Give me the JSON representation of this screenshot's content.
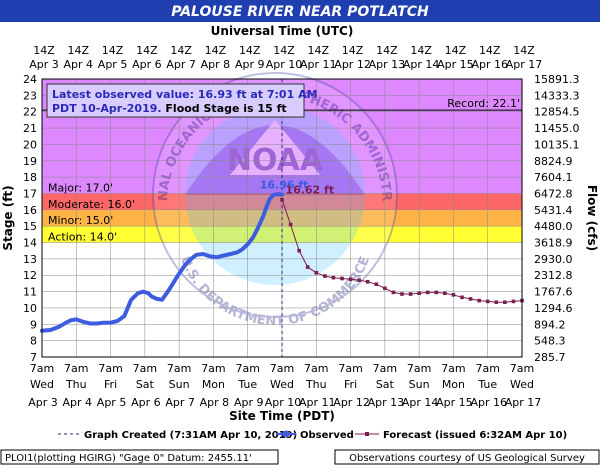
{
  "chart_data": {
    "type": "line",
    "title": "PALOUSE RIVER NEAR POTLATCH",
    "top_axis_label": "Universal Time (UTC)",
    "top_tick_labels": [
      [
        "14Z",
        "Apr 3"
      ],
      [
        "14Z",
        "Apr 4"
      ],
      [
        "14Z",
        "Apr 5"
      ],
      [
        "14Z",
        "Apr 6"
      ],
      [
        "14Z",
        "Apr 7"
      ],
      [
        "14Z",
        "Apr 8"
      ],
      [
        "14Z",
        "Apr 9"
      ],
      [
        "14Z",
        "Apr 10"
      ],
      [
        "14Z",
        "Apr 11"
      ],
      [
        "14Z",
        "Apr 12"
      ],
      [
        "14Z",
        "Apr 13"
      ],
      [
        "14Z",
        "Apr 14"
      ],
      [
        "14Z",
        "Apr 15"
      ],
      [
        "14Z",
        "Apr 16"
      ],
      [
        "14Z",
        "Apr 17"
      ]
    ],
    "xlabel": "Site Time (PDT)",
    "bottom_tick_labels": [
      [
        "7am",
        "Wed",
        "Apr 3"
      ],
      [
        "7am",
        "Thu",
        "Apr 4"
      ],
      [
        "7am",
        "Fri",
        "Apr 5"
      ],
      [
        "7am",
        "Sat",
        "Apr 6"
      ],
      [
        "7am",
        "Sun",
        "Apr 7"
      ],
      [
        "7am",
        "Mon",
        "Apr 8"
      ],
      [
        "7am",
        "Tue",
        "Apr 9"
      ],
      [
        "7am",
        "Wed",
        "Apr 10"
      ],
      [
        "7am",
        "Thu",
        "Apr 11"
      ],
      [
        "7am",
        "Fri",
        "Apr 12"
      ],
      [
        "7am",
        "Sat",
        "Apr 13"
      ],
      [
        "7am",
        "Sun",
        "Apr 14"
      ],
      [
        "7am",
        "Mon",
        "Apr 15"
      ],
      [
        "7am",
        "Tue",
        "Apr 16"
      ],
      [
        "7am",
        "Wed",
        "Apr 17"
      ]
    ],
    "ylabel": "Stage (ft)",
    "y2label": "Flow (cfs)",
    "xlim": [
      0,
      14
    ],
    "ylim": [
      7,
      24
    ],
    "y_ticks": [
      7,
      8,
      9,
      10,
      11,
      12,
      13,
      14,
      15,
      16,
      17,
      18,
      19,
      20,
      21,
      22,
      23,
      24
    ],
    "flow_ticks": [
      "285.7",
      "548.3",
      "894.2",
      "1294.6",
      "1767.6",
      "2312.8",
      "2930.0",
      "3618.9",
      "4480.0",
      "5431.4",
      "6472.8",
      "7604.1",
      "8824.9",
      "10135.1",
      "11455.0",
      "12854.5",
      "14333.3",
      "15891.3"
    ],
    "flood_categories": [
      {
        "name": "Action",
        "label": "Action: 14.0'",
        "from": 14.0,
        "to": 15.0,
        "color": "#ffff33"
      },
      {
        "name": "Minor",
        "label": "Minor: 15.0'",
        "from": 15.0,
        "to": 16.0,
        "color": "#ffb347"
      },
      {
        "name": "Moderate",
        "label": "Moderate: 16.0'",
        "from": 16.0,
        "to": 17.0,
        "color": "#ff6666"
      },
      {
        "name": "Major",
        "label": "Major: 17.0'",
        "from": 17.0,
        "to": 24.0,
        "color": "#dd88ff"
      }
    ],
    "record": {
      "label": "Record: 22.1'",
      "value": 22.1
    },
    "info_box": {
      "line1": "Latest observed value: 16.93 ft at 7:01 AM",
      "line2a": "PDT 10-Apr-2019.",
      "line2b": " Flood Stage is 15 ft"
    },
    "observed_peak_label": "16.96 ft",
    "forecast_peak_label": "16.62 ft",
    "graph_created_x": 7.0,
    "series": [
      {
        "name": "Observed",
        "color": "#3d5ce0",
        "x": [
          0,
          0.25,
          0.5,
          0.7,
          0.85,
          1.0,
          1.2,
          1.4,
          1.6,
          1.8,
          2.0,
          2.2,
          2.4,
          2.6,
          2.8,
          2.95,
          3.1,
          3.2,
          3.35,
          3.5,
          3.7,
          3.85,
          4.0,
          4.1,
          4.2,
          4.35,
          4.5,
          4.7,
          4.9,
          5.1,
          5.3,
          5.5,
          5.7,
          5.85,
          6.0,
          6.15,
          6.3,
          6.45,
          6.55,
          6.65,
          6.75,
          6.85,
          6.95,
          7.0
        ],
        "values": [
          8.6,
          8.65,
          8.85,
          9.1,
          9.25,
          9.3,
          9.15,
          9.05,
          9.05,
          9.1,
          9.1,
          9.2,
          9.5,
          10.5,
          10.9,
          11.0,
          10.9,
          10.7,
          10.55,
          10.5,
          11.1,
          11.6,
          12.1,
          12.4,
          12.7,
          13.0,
          13.25,
          13.3,
          13.15,
          13.1,
          13.2,
          13.3,
          13.4,
          13.6,
          13.9,
          14.3,
          14.9,
          15.6,
          16.2,
          16.7,
          16.9,
          16.95,
          16.95,
          16.93
        ]
      },
      {
        "name": "Forecast (issued 6:32AM Apr 10)",
        "color": "#7a1f4f",
        "x": [
          7.0,
          7.25,
          7.5,
          7.75,
          8.0,
          8.25,
          8.5,
          8.75,
          9.0,
          9.25,
          9.5,
          9.75,
          10.0,
          10.25,
          10.5,
          10.75,
          11.0,
          11.25,
          11.5,
          11.75,
          12.0,
          12.25,
          12.5,
          12.75,
          13.0,
          13.25,
          13.5,
          13.75,
          14.0
        ],
        "values": [
          16.62,
          15.1,
          13.5,
          12.5,
          12.15,
          11.95,
          11.85,
          11.8,
          11.75,
          11.7,
          11.6,
          11.45,
          11.2,
          10.95,
          10.85,
          10.85,
          10.9,
          10.95,
          10.95,
          10.9,
          10.8,
          10.65,
          10.55,
          10.45,
          10.4,
          10.35,
          10.35,
          10.4,
          10.45
        ]
      }
    ],
    "legend": {
      "graph_created": "Graph Created (7:31AM Apr 10, 2019)",
      "observed": "Observed",
      "forecast": "Forecast (issued 6:32AM Apr 10)"
    },
    "footer": {
      "left": "PLOI1(plotting HGIRG) \"Gage 0\" Datum:  2455.11'",
      "right": "Observations courtesy of US Geological Survey"
    },
    "watermark": {
      "top": "NATIONAL OCEANIC AND ATMOSPHERIC ADMINISTRATION",
      "bottom": "U.S. DEPARTMENT OF COMMERCE",
      "center": "NOAA"
    },
    "colors": {
      "title_bg": "#1f3fb0",
      "title_text": "#ffffff",
      "grid": "#888888",
      "plot_border": "#000000"
    }
  }
}
